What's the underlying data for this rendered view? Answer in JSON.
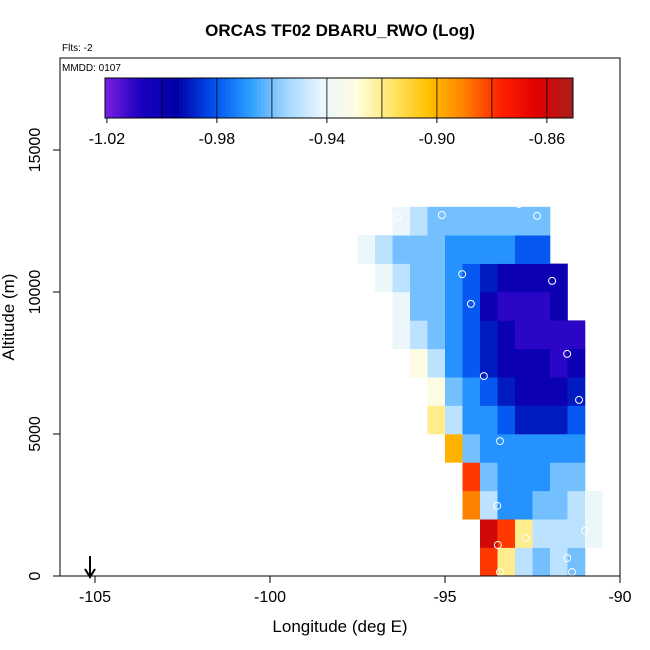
{
  "chart_data": {
    "type": "heatmap",
    "title": "ORCAS TF02 DBARU_RWO (Log)",
    "subtitle": "Flts: -2",
    "annotation": "MMDD: 0107",
    "x_label": "Longitude (deg E)",
    "y_label": "Altitude (m)",
    "xlim": [
      -106,
      -90
    ],
    "ylim": [
      0,
      18240
    ],
    "xticks": [
      -105,
      -100,
      -95,
      -90
    ],
    "yticks": [
      0,
      5000,
      10000,
      15000
    ],
    "x_edges": [
      -97.5,
      -97,
      -96.5,
      -96,
      -95.5,
      -95,
      -94.5,
      -94,
      -93.5,
      -93,
      -92.5,
      -92,
      -91.5,
      -91,
      -90.5
    ],
    "y_edges": [
      0,
      1000,
      2000,
      3000,
      4000,
      5000,
      6000,
      7000,
      8000,
      9000,
      10000,
      11000,
      12000,
      13000
    ],
    "values": [
      [
        null,
        null,
        null,
        null,
        null,
        null,
        null,
        -0.88,
        -0.92,
        -0.95,
        -0.96,
        -0.95,
        -0.96,
        null
      ],
      [
        null,
        null,
        null,
        null,
        null,
        null,
        null,
        -0.86,
        -0.88,
        -0.92,
        -0.95,
        -0.95,
        -0.95,
        -0.94
      ],
      [
        null,
        null,
        null,
        null,
        null,
        null,
        -0.89,
        -0.95,
        -0.97,
        -0.97,
        -0.96,
        -0.96,
        -0.95,
        -0.94
      ],
      [
        null,
        null,
        null,
        null,
        null,
        null,
        -0.88,
        -0.96,
        -0.97,
        -0.97,
        -0.97,
        -0.96,
        -0.96,
        null
      ],
      [
        null,
        null,
        null,
        null,
        null,
        -0.9,
        -0.96,
        -0.97,
        -0.97,
        -0.97,
        -0.97,
        -0.97,
        -0.97,
        null
      ],
      [
        null,
        null,
        null,
        null,
        -0.92,
        -0.95,
        -0.97,
        -0.97,
        -0.98,
        -0.99,
        -0.99,
        -0.99,
        -0.98,
        null
      ],
      [
        null,
        null,
        null,
        null,
        -0.93,
        -0.96,
        -0.97,
        -0.98,
        -0.99,
        -1.0,
        -1.0,
        -1.0,
        -0.99,
        null
      ],
      [
        null,
        null,
        null,
        -0.93,
        -0.95,
        -0.97,
        -0.98,
        -0.99,
        -1.0,
        -1.0,
        -1.0,
        -1.01,
        -1.0,
        null
      ],
      [
        null,
        null,
        -0.94,
        -0.95,
        -0.96,
        -0.97,
        -0.98,
        -0.99,
        -1.0,
        -1.01,
        -1.01,
        -1.01,
        -1.01,
        null
      ],
      [
        null,
        null,
        -0.94,
        -0.96,
        -0.96,
        -0.97,
        -0.98,
        -1.0,
        -1.01,
        -1.01,
        -1.01,
        -1.0,
        null,
        null
      ],
      [
        null,
        -0.94,
        -0.95,
        -0.96,
        -0.96,
        -0.97,
        -0.98,
        -0.99,
        -1.0,
        -1.0,
        -1.0,
        -1.0,
        null,
        null
      ],
      [
        -0.94,
        -0.95,
        -0.96,
        -0.96,
        -0.96,
        -0.97,
        -0.97,
        -0.97,
        -0.97,
        -0.98,
        -0.98,
        null,
        null,
        null
      ],
      [
        null,
        null,
        -0.94,
        -0.95,
        -0.96,
        -0.96,
        -0.96,
        -0.96,
        -0.96,
        -0.96,
        -0.96,
        null,
        null,
        null
      ]
    ],
    "points": {
      "x": [
        -96.34,
        -95.09,
        -92.37,
        -92.89,
        -94.51,
        -94.26,
        -91.94,
        -91.51,
        -93.89,
        -91.17,
        -93.43,
        -90.83,
        -93.51,
        -93.49,
        -92.69,
        -91.51,
        -93.43,
        -91.37,
        -91.0
      ],
      "y": [
        12640,
        12710,
        12680,
        13100,
        10630,
        9580,
        10390,
        7820,
        7040,
        6200,
        4750,
        4440,
        2470,
        1090,
        1340,
        630,
        140,
        140,
        1590
      ]
    },
    "colorbar": {
      "lim": [
        -1.0207,
        -0.8505
      ],
      "ticks": [
        -1.02,
        -0.98,
        -0.94,
        {
          "value": -0.9,
          "label": "-0.90"
        },
        -0.86
      ],
      "breaks": [
        -1.0,
        -0.98,
        -0.96,
        -0.94,
        -0.92,
        -0.9,
        -0.88,
        -0.86
      ],
      "colors": [
        "#7a20e0",
        "#1a00c0",
        "#0000a8",
        "#0050f0",
        "#2a9cff",
        "#9fd4ff",
        "#e8f6ff",
        "#fffde0",
        "#ffe566",
        "#ffc000",
        "#ff8000",
        "#ff2000",
        "#e00000",
        "#a82020"
      ]
    }
  }
}
